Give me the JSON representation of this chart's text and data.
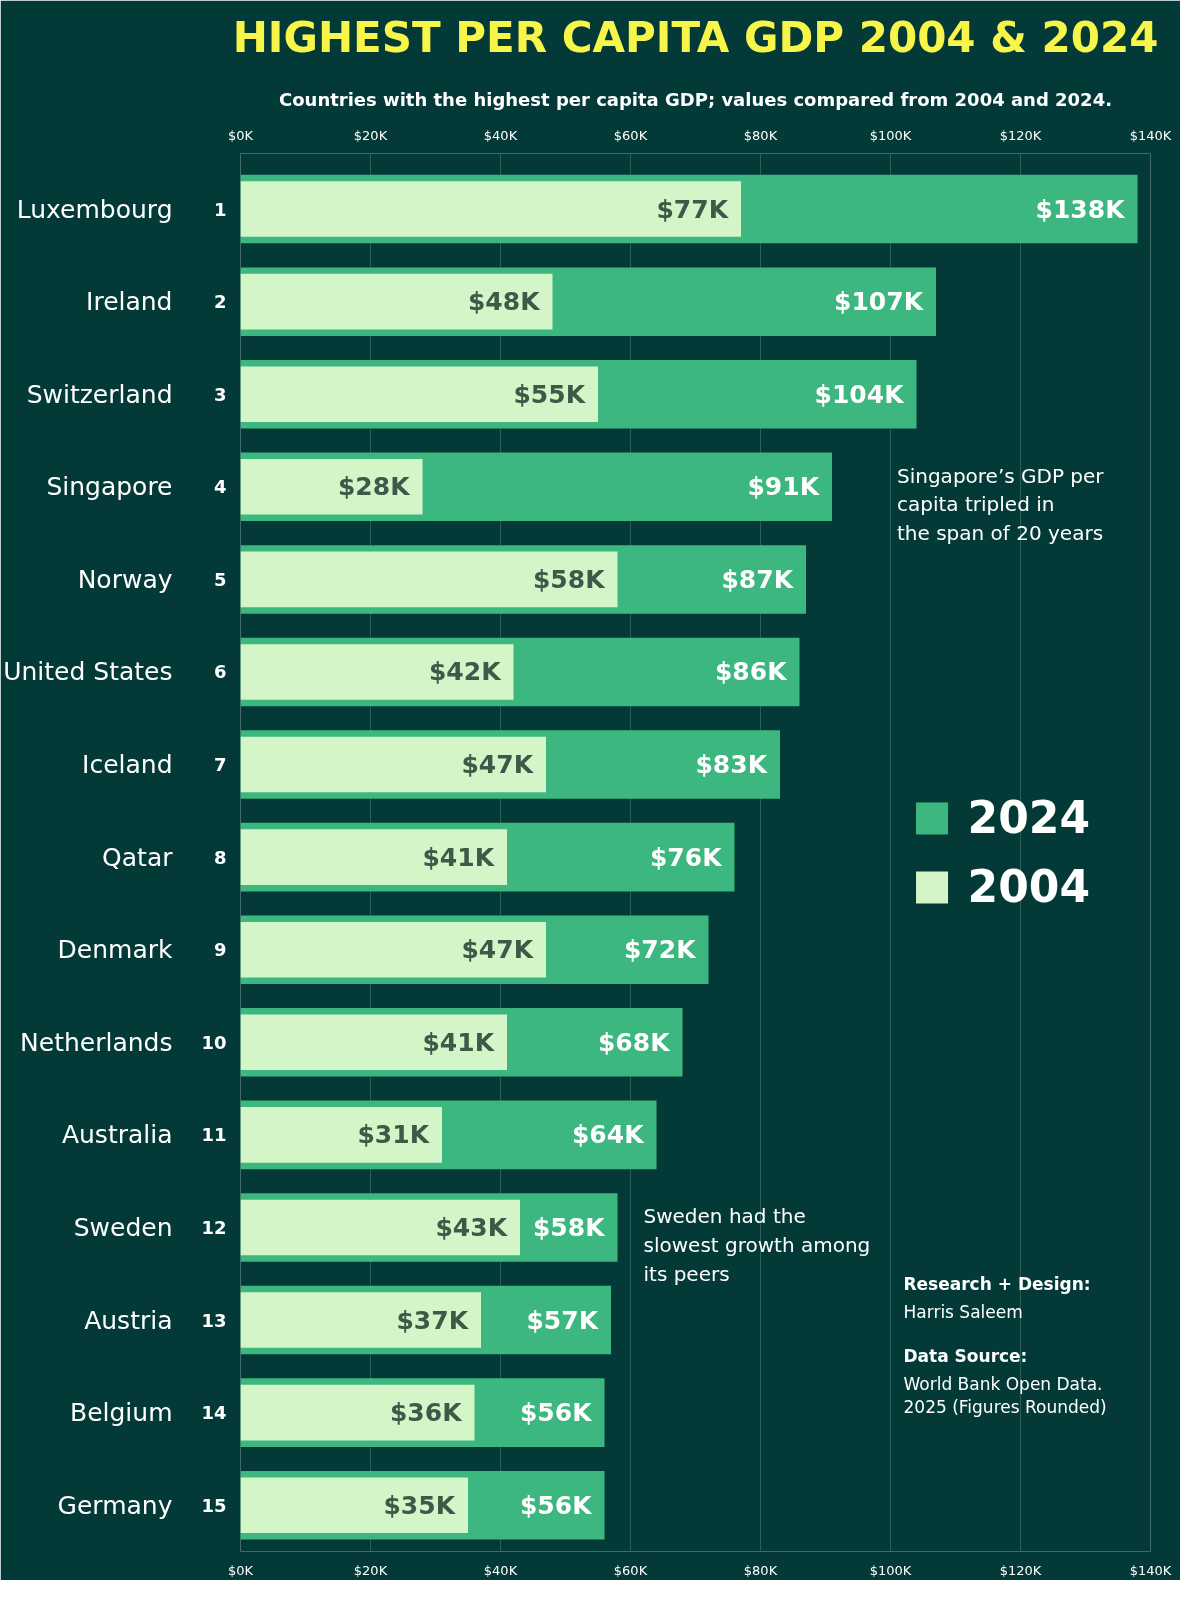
{
  "chart_data": {
    "type": "bar",
    "orientation": "horizontal",
    "title": "HIGHEST PER CAPITA GDP 2004 & 2024",
    "subtitle": "Countries with the highest per capita GDP; values compared from 2004 and 2024.",
    "categories": [
      "Luxembourg",
      "Ireland",
      "Switzerland",
      "Singapore",
      "Norway",
      "United States",
      "Iceland",
      "Qatar",
      "Denmark",
      "Netherlands",
      "Australia",
      "Sweden",
      "Austria",
      "Belgium",
      "Germany"
    ],
    "series": [
      {
        "name": "2024",
        "color": "#3cb77f",
        "values": [
          138,
          107,
          104,
          91,
          87,
          86,
          83,
          76,
          72,
          68,
          64,
          58,
          57,
          56,
          56
        ],
        "value_labels": [
          "$138K",
          "$107K",
          "$104K",
          "$91K",
          "$87K",
          "$86K",
          "$83K",
          "$76K",
          "$72K",
          "$68K",
          "$64K",
          "$58K",
          "$57K",
          "$56K",
          "$56K"
        ]
      },
      {
        "name": "2004",
        "color": "#d4f5c8",
        "values": [
          77,
          48,
          55,
          28,
          58,
          42,
          47,
          41,
          47,
          41,
          31,
          43,
          37,
          36,
          35
        ],
        "value_labels": [
          "$77K",
          "$48K",
          "$55K",
          "$28K",
          "$58K",
          "$42K",
          "$47K",
          "$41K",
          "$47K",
          "$41K",
          "$31K",
          "$43K",
          "$37K",
          "$36K",
          "$35K"
        ]
      }
    ],
    "xlim": [
      0,
      140
    ],
    "xticks": [
      {
        "value": 0,
        "label": "$0K"
      },
      {
        "value": 20,
        "label": "$20K"
      },
      {
        "value": 40,
        "label": "$40K"
      },
      {
        "value": 60,
        "label": "$60K"
      },
      {
        "value": 80,
        "label": "$80K"
      },
      {
        "value": 100,
        "label": "$100K"
      },
      {
        "value": 120,
        "label": "$120K"
      },
      {
        "value": 140,
        "label": "$140K"
      }
    ],
    "x2lim": [
      0,
      140
    ],
    "x2ticks": [
      {
        "value": 0,
        "label": "$0K"
      },
      {
        "value": 20,
        "label": "$20K"
      },
      {
        "value": 40,
        "label": "$40K"
      },
      {
        "value": 60,
        "label": "$60K"
      },
      {
        "value": 80,
        "label": "$80K"
      },
      {
        "value": 100,
        "label": "$100K"
      },
      {
        "value": 120,
        "label": "$120K"
      },
      {
        "value": 140,
        "label": "$140K"
      }
    ],
    "grid": "x",
    "legend": "right",
    "annotations": [
      "Singapore’s GDP per capita tripled in the span of 20 years",
      "Sweden had the slowest growth among its peers",
      "Research + Design: Harris Saleem",
      "Data Source: World Bank Open Data. 2025 (Figures Rounded)",
      "1",
      "2",
      "3",
      "4",
      "5",
      "6",
      "7",
      "8",
      "9",
      "10",
      "11",
      "12",
      "13",
      "14",
      "15"
    ]
  }
}
